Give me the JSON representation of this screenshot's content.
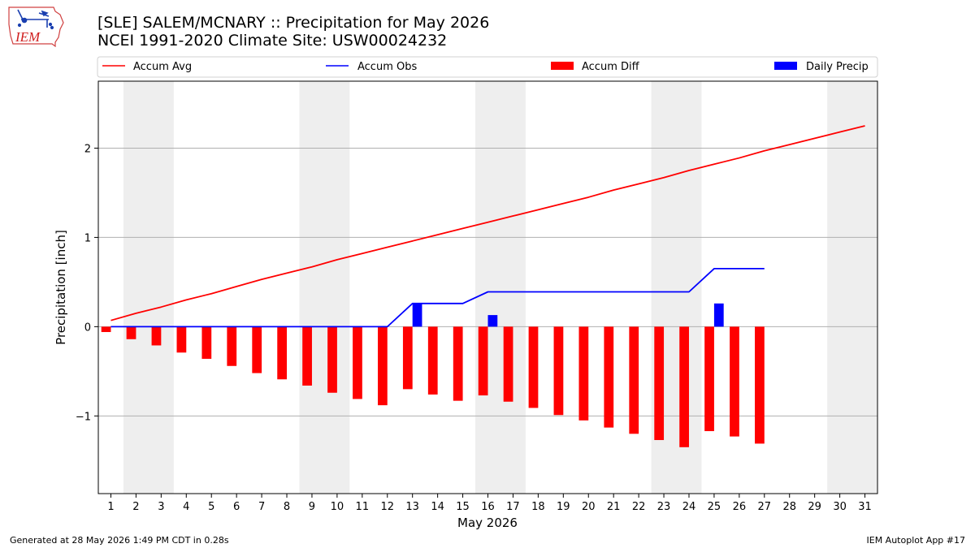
{
  "header": {
    "title_line1": "[SLE] SALEM/MCNARY :: Precipitation for May 2026",
    "title_line2": "NCEI 1991-2020 Climate Site: USW00024232",
    "logo_text": "IEM"
  },
  "footer": {
    "generated": "Generated at 28 May 2026 1:49 PM CDT in 0.28s",
    "app": "IEM Autoplot App #17"
  },
  "colors": {
    "accum_avg": "#ff0000",
    "accum_obs": "#0000ff",
    "accum_diff": "#ff0000",
    "daily_precip": "#0000ff",
    "weekend_shade": "#eeeeee",
    "grid": "#b0b0b0"
  },
  "chart_data": {
    "type": "bar",
    "xlabel": "May 2026",
    "ylabel": "Precipitation [inch]",
    "xlim": [
      0.5,
      31.5
    ],
    "ylim": [
      -1.87,
      2.75
    ],
    "yticks": [
      -1,
      0,
      1,
      2
    ],
    "ytick_labels": [
      "−1",
      "0",
      "1",
      "2"
    ],
    "grid": "horizontal",
    "legend_placement": "top, above plot",
    "days": [
      1,
      2,
      3,
      4,
      5,
      6,
      7,
      8,
      9,
      10,
      11,
      12,
      13,
      14,
      15,
      16,
      17,
      18,
      19,
      20,
      21,
      22,
      23,
      24,
      25,
      26,
      27,
      28,
      29,
      30,
      31
    ],
    "shaded_day_ranges": [
      [
        2,
        3
      ],
      [
        9,
        10
      ],
      [
        16,
        17
      ],
      [
        23,
        24
      ],
      [
        30,
        31
      ]
    ],
    "series": [
      {
        "name": "Accum Avg",
        "kind": "line",
        "x": [
          1,
          2,
          3,
          4,
          5,
          6,
          7,
          8,
          9,
          10,
          11,
          12,
          13,
          14,
          15,
          16,
          17,
          18,
          19,
          20,
          21,
          22,
          23,
          24,
          25,
          26,
          27,
          28,
          29,
          30,
          31
        ],
        "values": [
          0.07,
          0.15,
          0.22,
          0.3,
          0.37,
          0.45,
          0.53,
          0.6,
          0.67,
          0.75,
          0.82,
          0.89,
          0.96,
          1.03,
          1.1,
          1.17,
          1.24,
          1.31,
          1.38,
          1.45,
          1.53,
          1.6,
          1.67,
          1.75,
          1.82,
          1.89,
          1.97,
          2.04,
          2.11,
          2.18,
          2.25
        ]
      },
      {
        "name": "Accum Obs",
        "kind": "line",
        "x": [
          1,
          2,
          3,
          4,
          5,
          6,
          7,
          8,
          9,
          10,
          11,
          12,
          13,
          14,
          15,
          16,
          17,
          18,
          19,
          20,
          21,
          22,
          23,
          24,
          25,
          26,
          27
        ],
        "values": [
          0,
          0,
          0,
          0,
          0,
          0,
          0,
          0,
          0,
          0,
          0,
          0,
          0.26,
          0.26,
          0.26,
          0.39,
          0.39,
          0.39,
          0.39,
          0.39,
          0.39,
          0.39,
          0.39,
          0.39,
          0.65,
          0.65,
          0.65
        ]
      },
      {
        "name": "Accum Diff",
        "kind": "bar",
        "x": [
          1,
          2,
          3,
          4,
          5,
          6,
          7,
          8,
          9,
          10,
          11,
          12,
          13,
          14,
          15,
          16,
          17,
          18,
          19,
          20,
          21,
          22,
          23,
          24,
          25,
          26,
          27
        ],
        "values": [
          -0.06,
          -0.14,
          -0.21,
          -0.29,
          -0.36,
          -0.44,
          -0.52,
          -0.59,
          -0.66,
          -0.74,
          -0.81,
          -0.88,
          -0.7,
          -0.76,
          -0.83,
          -0.77,
          -0.84,
          -0.91,
          -0.99,
          -1.05,
          -1.13,
          -1.2,
          -1.27,
          -1.35,
          -1.17,
          -1.23,
          -1.31
        ]
      },
      {
        "name": "Daily Precip",
        "kind": "bar",
        "x": [
          13,
          16,
          25
        ],
        "values": [
          0.26,
          0.13,
          0.26
        ]
      }
    ]
  }
}
